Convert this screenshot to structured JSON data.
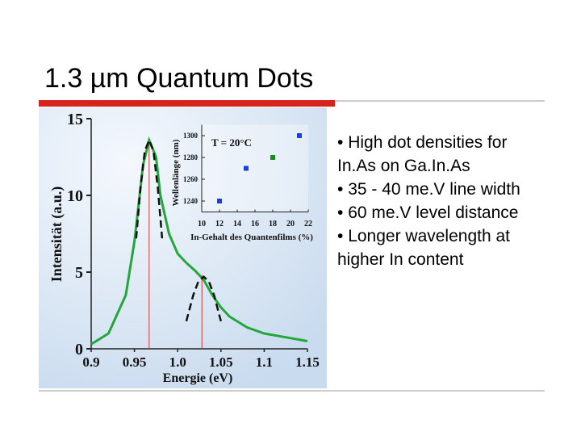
{
  "slide": {
    "title": "1.3 µm Quantum Dots",
    "bullets": [
      "High dot densities for In.As on Ga.In.As",
      "35 - 40 me.V line width",
      "60 me.V level distance",
      "Longer wavelength at higher In content"
    ]
  },
  "figure": {
    "main": {
      "type": "line",
      "x_label": "Energie (eV)",
      "y_label": "Intensität (a.u.)",
      "xlim": [
        0.9,
        1.15
      ],
      "ylim": [
        0,
        15
      ],
      "xticks": [
        0.9,
        0.95,
        {
          "value": 1,
          "label": "1.0"
        },
        1.05,
        1.1,
        1.15
      ],
      "yticks": [
        0,
        5,
        10,
        15
      ],
      "series": [
        {
          "color": "#22a83a",
          "x": [
            0.9,
            0.92,
            0.94,
            0.95,
            0.96,
            0.967,
            0.975,
            0.98,
            0.99,
            1.0,
            1.01,
            1.02,
            1.03,
            1.04,
            1.05,
            1.06,
            1.08,
            1.1,
            1.13,
            1.15
          ],
          "values": [
            0.3,
            1,
            3.5,
            7,
            12,
            13.6,
            12.5,
            10,
            7.5,
            6.2,
            5.6,
            5.1,
            4.5,
            3.5,
            2.7,
            2.1,
            1.4,
            1,
            0.7,
            0.5
          ]
        }
      ],
      "fits": [
        {
          "color": "#111111",
          "x": [
            0.952,
            0.957,
            0.962,
            0.967,
            0.972,
            0.977,
            0.982
          ],
          "values": [
            7.2,
            10.5,
            12.9,
            13.6,
            12.9,
            10.5,
            7.2
          ]
        },
        {
          "color": "#111111",
          "x": [
            1.01,
            1.018,
            1.024,
            1.03,
            1.036,
            1.042,
            1.05
          ],
          "values": [
            1.8,
            3.5,
            4.4,
            4.7,
            4.4,
            3.5,
            1.8
          ]
        }
      ],
      "peak_lines": {
        "color": "#e0302a",
        "x": [
          0.967,
          1.028
        ],
        "values": [
          13.5,
          4.8
        ]
      }
    },
    "inset": {
      "type": "scatter",
      "annotation": "T = 20°C",
      "x_label": "In-Gehalt des Quantenfilms (%)",
      "y_label": "Wellenlänge (nm)",
      "xlim": [
        10,
        22
      ],
      "ylim": [
        1230,
        1310
      ],
      "xticks": [
        10,
        12,
        14,
        16,
        18,
        20,
        22
      ],
      "yticks": [
        1240,
        1260,
        1280,
        1300
      ],
      "x": [
        12,
        15,
        18,
        21
      ],
      "values": [
        1240,
        1270,
        1280,
        1300
      ],
      "colors": [
        "#1d3fd6",
        "#1d3fd6",
        "#1a8a1a",
        "#1d3fd6"
      ]
    }
  }
}
